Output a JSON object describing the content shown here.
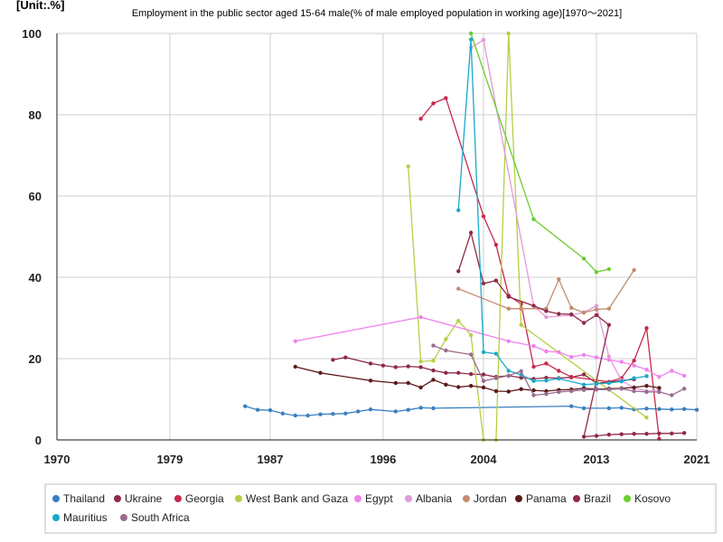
{
  "chart_data": {
    "type": "line",
    "unit_label": "[Unit:.%]",
    "title": "Employment in the public sector aged 15-64 male(% of male employed population in working age)[1970～2021]",
    "xlim": [
      1970,
      2021
    ],
    "ylim": [
      0,
      100
    ],
    "xticks": [
      1970,
      1979,
      1987,
      1996,
      2004,
      2013,
      2021
    ],
    "yticks": [
      0,
      20,
      40,
      60,
      80,
      100
    ],
    "grid": true,
    "legend_position": "bottom",
    "series": [
      {
        "name": "Thailand",
        "color": "#3a7fc0",
        "points": [
          [
            1985,
            8.3
          ],
          [
            1986,
            7.4
          ],
          [
            1987,
            7.3
          ],
          [
            1988,
            6.5
          ],
          [
            1989,
            6.0
          ],
          [
            1990,
            6.0
          ],
          [
            1991,
            6.3
          ],
          [
            1992,
            6.4
          ],
          [
            1993,
            6.5
          ],
          [
            1994,
            7.0
          ],
          [
            1995,
            7.5
          ],
          [
            1997,
            7.0
          ],
          [
            1998,
            7.4
          ],
          [
            1999,
            7.9
          ],
          [
            2000,
            7.8
          ],
          [
            2011,
            8.3
          ],
          [
            2012,
            7.8
          ],
          [
            2014,
            7.8
          ],
          [
            2015,
            7.9
          ],
          [
            2016,
            7.5
          ],
          [
            2017,
            7.7
          ],
          [
            2018,
            7.6
          ],
          [
            2019,
            7.5
          ],
          [
            2020,
            7.6
          ],
          [
            2021,
            7.4
          ]
        ]
      },
      {
        "name": "Ukraine",
        "color": "#8e2a46",
        "points": [
          [
            1992,
            19.7
          ],
          [
            1993,
            20.3
          ],
          [
            1995,
            18.8
          ],
          [
            1996,
            18.3
          ],
          [
            1997,
            17.9
          ],
          [
            1998,
            18.1
          ],
          [
            1999,
            17.9
          ],
          [
            2000,
            17.1
          ],
          [
            2001,
            16.5
          ],
          [
            2002,
            16.5
          ],
          [
            2003,
            16.2
          ],
          [
            2004,
            16.1
          ],
          [
            2005,
            15.5
          ],
          [
            2006,
            15.8
          ],
          [
            2007,
            15.3
          ],
          [
            2008,
            15.0
          ],
          [
            2009,
            15.3
          ],
          [
            2010,
            15.2
          ],
          [
            2011,
            15.4
          ],
          [
            2012,
            16.1
          ],
          [
            2013,
            14.0
          ],
          [
            2014,
            14.2
          ],
          [
            2015,
            14.6
          ],
          [
            2016,
            14.9
          ]
        ]
      },
      {
        "name": "Georgia",
        "color": "#c8284a",
        "points": [
          [
            1999,
            79.0
          ],
          [
            2000,
            82.8
          ],
          [
            2001,
            84.1
          ],
          [
            2004,
            55.0
          ],
          [
            2005,
            48.0
          ],
          [
            2006,
            35.5
          ],
          [
            2007,
            33.5
          ],
          [
            2008,
            18.0
          ],
          [
            2009,
            18.8
          ],
          [
            2010,
            17.0
          ],
          [
            2011,
            15.5
          ],
          [
            2014,
            14.3
          ],
          [
            2015,
            15.2
          ],
          [
            2016,
            19.5
          ],
          [
            2017,
            27.5
          ],
          [
            2018,
            0.3
          ]
        ]
      },
      {
        "name": "West Bank and Gaza",
        "color": "#b5cf45",
        "points": [
          [
            1998,
            67.3
          ],
          [
            1999,
            19.3
          ],
          [
            2000,
            19.5
          ],
          [
            2001,
            24.8
          ],
          [
            2002,
            29.3
          ],
          [
            2003,
            25.8
          ],
          [
            2004,
            0
          ],
          [
            2005,
            0
          ],
          [
            2006,
            100
          ],
          [
            2007,
            28.3
          ],
          [
            2017,
            5.5
          ]
        ]
      },
      {
        "name": "Egypt",
        "color": "#ee82ee",
        "points": [
          [
            1989,
            24.3
          ],
          [
            1999,
            30.2
          ],
          [
            2006,
            24.3
          ],
          [
            2008,
            23.1
          ],
          [
            2009,
            21.8
          ],
          [
            2010,
            21.6
          ],
          [
            2011,
            20.4
          ],
          [
            2012,
            20.9
          ],
          [
            2013,
            20.3
          ],
          [
            2014,
            19.7
          ],
          [
            2015,
            19.2
          ],
          [
            2016,
            18.3
          ],
          [
            2017,
            17.3
          ],
          [
            2018,
            15.5
          ],
          [
            2019,
            17.0
          ],
          [
            2020,
            15.8
          ]
        ]
      },
      {
        "name": "Albania",
        "color": "#e29ad8",
        "points": [
          [
            2003,
            96.5
          ],
          [
            2004,
            98.4
          ],
          [
            2008,
            33.0
          ],
          [
            2009,
            30.2
          ],
          [
            2011,
            30.7
          ],
          [
            2012,
            31.4
          ],
          [
            2013,
            33.0
          ],
          [
            2014,
            20.5
          ],
          [
            2015,
            14.6
          ],
          [
            2016,
            12.8
          ],
          [
            2017,
            12.0
          ],
          [
            2018,
            12.3
          ]
        ]
      },
      {
        "name": "Jordan",
        "color": "#c48b6e",
        "points": [
          [
            2002,
            37.2
          ],
          [
            2006,
            32.3
          ],
          [
            2007,
            32.3
          ],
          [
            2009,
            32.3
          ],
          [
            2010,
            39.5
          ],
          [
            2011,
            32.5
          ],
          [
            2012,
            31.3
          ],
          [
            2013,
            32.1
          ],
          [
            2014,
            32.3
          ],
          [
            2016,
            41.8
          ]
        ]
      },
      {
        "name": "Panama",
        "color": "#5c1a18",
        "points": [
          [
            1989,
            18.0
          ],
          [
            1991,
            16.5
          ],
          [
            1995,
            14.6
          ],
          [
            1997,
            14.0
          ],
          [
            1998,
            14.0
          ],
          [
            1999,
            12.9
          ],
          [
            2000,
            14.8
          ],
          [
            2001,
            13.6
          ],
          [
            2002,
            13.0
          ],
          [
            2003,
            13.3
          ],
          [
            2004,
            12.9
          ],
          [
            2005,
            12.0
          ],
          [
            2006,
            11.9
          ],
          [
            2007,
            12.5
          ],
          [
            2008,
            12.2
          ],
          [
            2009,
            12.0
          ],
          [
            2010,
            12.3
          ],
          [
            2011,
            12.4
          ],
          [
            2012,
            12.7
          ],
          [
            2013,
            12.5
          ],
          [
            2014,
            12.6
          ],
          [
            2015,
            12.7
          ],
          [
            2016,
            12.9
          ],
          [
            2017,
            13.3
          ],
          [
            2018,
            12.8
          ]
        ]
      },
      {
        "name": "Brazil",
        "color": "#8e2a46",
        "points": [
          [
            2002,
            41.5
          ],
          [
            2003,
            51.0
          ],
          [
            2004,
            38.5
          ],
          [
            2005,
            39.2
          ],
          [
            2006,
            35.2
          ],
          [
            2008,
            33.0
          ],
          [
            2009,
            31.7
          ],
          [
            2010,
            31.0
          ],
          [
            2011,
            30.9
          ],
          [
            2012,
            28.8
          ],
          [
            2013,
            30.7
          ],
          [
            2014,
            28.3
          ],
          [
            2012,
            0.8
          ],
          [
            2013,
            1.0
          ],
          [
            2014,
            1.3
          ],
          [
            2015,
            1.4
          ],
          [
            2016,
            1.5
          ],
          [
            2017,
            1.5
          ],
          [
            2018,
            1.6
          ],
          [
            2019,
            1.6
          ],
          [
            2020,
            1.7
          ]
        ]
      },
      {
        "name": "Kosovo",
        "color": "#6acd2e",
        "points": [
          [
            2003,
            100
          ],
          [
            2008,
            54.3
          ],
          [
            2012,
            44.6
          ],
          [
            2013,
            41.3
          ],
          [
            2014,
            42.0
          ]
        ]
      },
      {
        "name": "Mauritius",
        "color": "#1aa9c9",
        "points": [
          [
            2002,
            56.5
          ],
          [
            2003,
            98.5
          ],
          [
            2004,
            21.6
          ],
          [
            2005,
            21.2
          ],
          [
            2006,
            17.0
          ],
          [
            2007,
            16.0
          ],
          [
            2008,
            14.5
          ],
          [
            2009,
            14.6
          ],
          [
            2010,
            15.1
          ],
          [
            2012,
            13.6
          ],
          [
            2013,
            13.8
          ],
          [
            2014,
            14.0
          ],
          [
            2015,
            14.4
          ],
          [
            2016,
            15.2
          ],
          [
            2017,
            15.7
          ]
        ]
      },
      {
        "name": "South Africa",
        "color": "#9a6c8f",
        "points": [
          [
            2000,
            23.2
          ],
          [
            2001,
            22.0
          ],
          [
            2003,
            21.0
          ],
          [
            2004,
            14.5
          ],
          [
            2005,
            15.2
          ],
          [
            2006,
            15.8
          ],
          [
            2007,
            16.9
          ],
          [
            2008,
            11.0
          ],
          [
            2009,
            11.3
          ],
          [
            2010,
            11.8
          ],
          [
            2011,
            12.0
          ],
          [
            2012,
            12.3
          ],
          [
            2013,
            12.4
          ],
          [
            2014,
            12.4
          ],
          [
            2015,
            12.6
          ],
          [
            2016,
            12.0
          ],
          [
            2017,
            11.8
          ],
          [
            2018,
            11.8
          ],
          [
            2019,
            11.0
          ],
          [
            2020,
            12.6
          ]
        ]
      }
    ]
  }
}
